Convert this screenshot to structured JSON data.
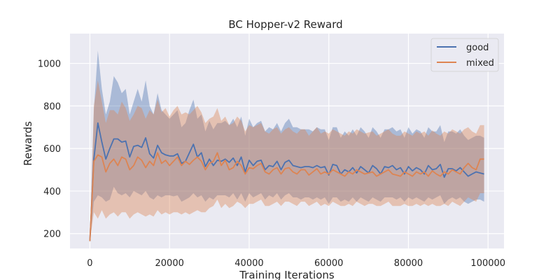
{
  "chart_data": {
    "type": "line",
    "title": "BC Hopper-v2 Reward",
    "xlabel": "Training Iterations",
    "ylabel": "Rewards",
    "xlim": [
      -5000,
      104000
    ],
    "ylim": [
      130,
      1140
    ],
    "x_ticks": [
      0,
      20000,
      40000,
      60000,
      80000,
      100000
    ],
    "y_ticks": [
      200,
      400,
      600,
      800,
      1000
    ],
    "x_tick_labels": [
      "0",
      "20000",
      "40000",
      "60000",
      "80000",
      "100000"
    ],
    "y_tick_labels": [
      "200",
      "400",
      "600",
      "800",
      "1000"
    ],
    "grid": true,
    "legend_position": "top-right",
    "x_start": 0,
    "x_step": 1000,
    "series": [
      {
        "name": "good",
        "color": "#4c72b0",
        "mean": [
          165,
          550,
          720,
          630,
          550,
          600,
          645,
          645,
          630,
          635,
          560,
          610,
          615,
          605,
          650,
          575,
          555,
          615,
          580,
          570,
          565,
          565,
          575,
          530,
          540,
          580,
          620,
          560,
          580,
          515,
          550,
          520,
          545,
          540,
          550,
          535,
          555,
          520,
          560,
          490,
          545,
          520,
          540,
          545,
          500,
          520,
          515,
          540,
          500,
          535,
          545,
          520,
          515,
          510,
          515,
          515,
          510,
          520,
          510,
          515,
          475,
          525,
          520,
          480,
          500,
          490,
          510,
          485,
          515,
          500,
          485,
          520,
          505,
          480,
          515,
          510,
          520,
          500,
          510,
          480,
          515,
          495,
          510,
          500,
          480,
          520,
          500,
          505,
          525,
          465,
          505,
          505,
          495,
          510,
          490,
          470,
          480,
          490,
          485,
          480
        ],
        "lower": [
          160,
          350,
          380,
          370,
          350,
          360,
          420,
          390,
          380,
          390,
          370,
          400,
          390,
          380,
          400,
          370,
          360,
          380,
          370,
          380,
          380,
          375,
          380,
          350,
          360,
          370,
          390,
          370,
          380,
          350,
          370,
          360,
          380,
          380,
          380,
          370,
          390,
          360,
          390,
          350,
          390,
          370,
          380,
          390,
          360,
          380,
          370,
          390,
          360,
          380,
          390,
          370,
          370,
          360,
          370,
          370,
          360,
          370,
          360,
          370,
          340,
          370,
          370,
          350,
          360,
          350,
          370,
          350,
          370,
          360,
          350,
          370,
          360,
          350,
          370,
          370,
          370,
          360,
          370,
          350,
          370,
          360,
          370,
          360,
          350,
          370,
          360,
          370,
          380,
          340,
          360,
          370,
          360,
          370,
          350,
          340,
          350,
          360,
          360,
          350
        ],
        "upper": [
          170,
          780,
          1060,
          880,
          760,
          820,
          940,
          910,
          860,
          880,
          760,
          820,
          880,
          820,
          920,
          800,
          760,
          860,
          780,
          760,
          740,
          760,
          780,
          700,
          720,
          780,
          830,
          740,
          760,
          680,
          730,
          690,
          720,
          720,
          730,
          710,
          740,
          700,
          750,
          660,
          740,
          700,
          720,
          730,
          680,
          700,
          690,
          720,
          680,
          720,
          740,
          700,
          700,
          690,
          690,
          690,
          680,
          700,
          690,
          690,
          640,
          700,
          700,
          650,
          680,
          660,
          690,
          660,
          700,
          680,
          650,
          700,
          680,
          650,
          690,
          690,
          700,
          680,
          690,
          650,
          700,
          670,
          690,
          680,
          650,
          700,
          680,
          680,
          710,
          630,
          680,
          680,
          670,
          690,
          660,
          640,
          650,
          660,
          660,
          650
        ]
      },
      {
        "name": "mixed",
        "color": "#dd8452",
        "mean": [
          165,
          540,
          570,
          560,
          490,
          530,
          550,
          520,
          560,
          550,
          500,
          520,
          560,
          545,
          510,
          540,
          520,
          580,
          530,
          545,
          520,
          540,
          560,
          520,
          540,
          525,
          545,
          560,
          540,
          500,
          530,
          540,
          580,
          520,
          545,
          500,
          510,
          540,
          520,
          480,
          510,
          505,
          520,
          530,
          490,
          480,
          500,
          510,
          480,
          505,
          510,
          490,
          480,
          500,
          500,
          475,
          490,
          505,
          480,
          490,
          480,
          500,
          490,
          480,
          470,
          490,
          480,
          500,
          490,
          480,
          485,
          490,
          470,
          480,
          490,
          500,
          480,
          475,
          470,
          490,
          480,
          470,
          490,
          480,
          490,
          470,
          495,
          480,
          470,
          490,
          480,
          500,
          490,
          480,
          510,
          530,
          510,
          500,
          550,
          550
        ],
        "lower": [
          160,
          300,
          270,
          310,
          270,
          290,
          300,
          280,
          300,
          300,
          270,
          290,
          300,
          290,
          280,
          290,
          280,
          310,
          290,
          300,
          290,
          300,
          300,
          290,
          300,
          290,
          300,
          310,
          300,
          300,
          320,
          330,
          360,
          320,
          340,
          320,
          330,
          350,
          340,
          320,
          340,
          340,
          350,
          360,
          330,
          330,
          340,
          350,
          330,
          350,
          350,
          340,
          330,
          350,
          350,
          330,
          340,
          350,
          330,
          340,
          330,
          350,
          340,
          330,
          330,
          340,
          330,
          350,
          340,
          330,
          340,
          340,
          330,
          330,
          340,
          350,
          330,
          330,
          330,
          340,
          330,
          330,
          340,
          330,
          340,
          330,
          340,
          330,
          330,
          340,
          330,
          350,
          340,
          330,
          350,
          370,
          360,
          350,
          390,
          390
        ],
        "upper": [
          170,
          800,
          920,
          820,
          720,
          780,
          780,
          760,
          820,
          790,
          730,
          760,
          800,
          790,
          740,
          780,
          760,
          830,
          770,
          790,
          750,
          780,
          800,
          760,
          770,
          760,
          780,
          800,
          770,
          720,
          740,
          750,
          790,
          730,
          750,
          710,
          720,
          750,
          730,
          680,
          710,
          700,
          710,
          720,
          680,
          670,
          690,
          700,
          670,
          690,
          700,
          680,
          670,
          690,
          690,
          660,
          680,
          700,
          670,
          680,
          670,
          690,
          680,
          670,
          660,
          680,
          670,
          690,
          680,
          670,
          675,
          680,
          660,
          670,
          680,
          690,
          670,
          660,
          660,
          680,
          670,
          660,
          680,
          670,
          680,
          660,
          685,
          670,
          660,
          680,
          670,
          690,
          680,
          670,
          690,
          700,
          680,
          670,
          710,
          710
        ]
      }
    ]
  }
}
